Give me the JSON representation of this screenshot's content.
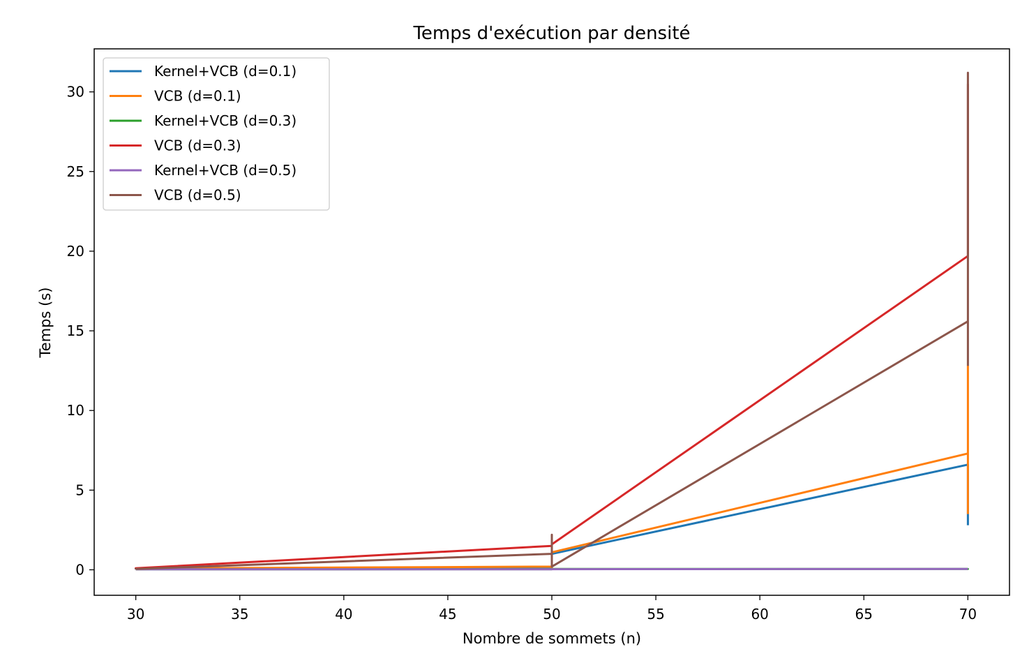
{
  "chart_data": {
    "type": "line",
    "title": "Temps d'exécution par densité",
    "xlabel": "Nombre de sommets (n)",
    "ylabel": "Temps (s)",
    "xlim": [
      28,
      72
    ],
    "ylim": [
      -1.6,
      32.7
    ],
    "xticks": [
      30,
      35,
      40,
      45,
      50,
      55,
      60,
      65,
      70
    ],
    "yticks": [
      0,
      5,
      10,
      15,
      20,
      25,
      30
    ],
    "grid": false,
    "legend_position": "top-left",
    "series": [
      {
        "name": "Kernel+VCB (d=0.1)",
        "color": "#1f77b4",
        "x": [
          30,
          30,
          50,
          50,
          70,
          70
        ],
        "y": [
          0.03,
          0.05,
          0.1,
          1.0,
          6.6,
          2.8
        ]
      },
      {
        "name": "VCB (d=0.1)",
        "color": "#ff7f0e",
        "x": [
          30,
          30,
          50,
          50,
          50,
          70,
          70,
          70
        ],
        "y": [
          0.05,
          0.08,
          0.2,
          0.05,
          1.1,
          7.3,
          12.8,
          3.5
        ]
      },
      {
        "name": "Kernel+VCB (d=0.3)",
        "color": "#2ca02c",
        "x": [
          30,
          30,
          50,
          50,
          70,
          70
        ],
        "y": [
          0.02,
          0.03,
          0.04,
          0.05,
          0.05,
          0.1
        ]
      },
      {
        "name": "VCB (d=0.3)",
        "color": "#d62728",
        "x": [
          30,
          30,
          50,
          50,
          70,
          70
        ],
        "y": [
          0.05,
          0.1,
          1.5,
          1.6,
          19.7,
          30.5
        ]
      },
      {
        "name": "Kernel+VCB (d=0.5)",
        "color": "#9467bd",
        "x": [
          30,
          30,
          50,
          50,
          70,
          70
        ],
        "y": [
          0.02,
          0.03,
          0.03,
          0.04,
          0.05,
          0.05
        ]
      },
      {
        "name": "VCB (d=0.5)",
        "color": "#8c564b",
        "x": [
          30,
          30,
          50,
          50,
          50,
          70,
          70,
          70
        ],
        "y": [
          0.03,
          0.05,
          1.0,
          2.2,
          0.2,
          15.6,
          31.2,
          12.8
        ]
      }
    ]
  }
}
